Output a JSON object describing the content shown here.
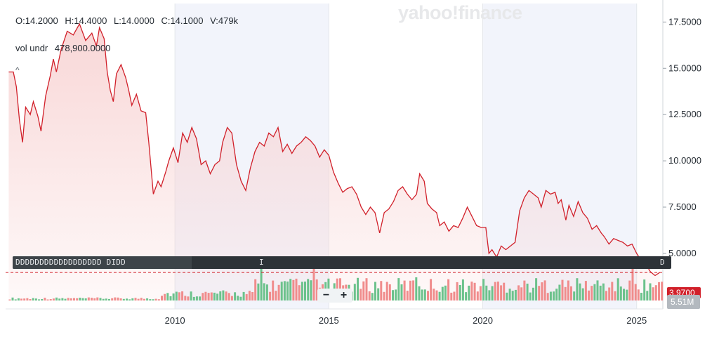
{
  "ohlc": {
    "open": "O:14.2000",
    "high": "H:14.4000",
    "low": "L:14.0000",
    "close": "C:14.1000",
    "volume": "V:479k"
  },
  "volume_under": {
    "label": "vol undr",
    "value": "478,900.0000"
  },
  "collapse_glyph": "^",
  "logo": {
    "text": "yahoo!finance"
  },
  "navigator": {
    "left_labels": "DDDDDDDDDDDDDDDDDD DIDD",
    "mid_label": "I",
    "right_label": "D"
  },
  "zoom": {
    "minus": "−",
    "plus": "+"
  },
  "badges": {
    "last_price": "3.9700",
    "last_volume": "5.51M"
  },
  "colors": {
    "line": "#d1202a",
    "area": "#f8d5d5",
    "up_volume": "#6cc28c",
    "down_volume": "#f08c8c",
    "shade": "#f2f4fb"
  },
  "chart_data": {
    "type": "line",
    "y_axis": {
      "ticks": [
        "17.5000",
        "15.0000",
        "12.5000",
        "10.0000",
        "7.5000",
        "5.0000"
      ],
      "ylim": [
        2.0,
        18.5
      ],
      "position": "right"
    },
    "x_axis": {
      "ticks": [
        "2010",
        "2015",
        "2020",
        "2025"
      ],
      "xlim": [
        2004.5,
        2025.85
      ]
    },
    "last_price": 3.97,
    "series": [
      {
        "points": [
          [
            2004.6,
            14.8
          ],
          [
            2004.75,
            14.8
          ],
          [
            2004.85,
            14.0
          ],
          [
            2004.95,
            12.2
          ],
          [
            2005.05,
            11.0
          ],
          [
            2005.15,
            12.9
          ],
          [
            2005.3,
            12.5
          ],
          [
            2005.4,
            13.2
          ],
          [
            2005.55,
            12.4
          ],
          [
            2005.65,
            11.6
          ],
          [
            2005.8,
            13.5
          ],
          [
            2005.95,
            14.6
          ],
          [
            2006.05,
            15.5
          ],
          [
            2006.15,
            14.8
          ],
          [
            2006.3,
            16.0
          ],
          [
            2006.5,
            17.0
          ],
          [
            2006.7,
            16.8
          ],
          [
            2006.9,
            17.4
          ],
          [
            2007.1,
            16.5
          ],
          [
            2007.3,
            16.9
          ],
          [
            2007.45,
            16.2
          ],
          [
            2007.55,
            17.2
          ],
          [
            2007.7,
            16.6
          ],
          [
            2007.8,
            14.8
          ],
          [
            2007.9,
            13.8
          ],
          [
            2008.0,
            13.2
          ],
          [
            2008.1,
            14.7
          ],
          [
            2008.25,
            15.2
          ],
          [
            2008.4,
            14.5
          ],
          [
            2008.5,
            13.8
          ],
          [
            2008.6,
            13.0
          ],
          [
            2008.75,
            13.6
          ],
          [
            2008.9,
            12.7
          ],
          [
            2009.05,
            12.6
          ],
          [
            2009.15,
            11.0
          ],
          [
            2009.3,
            8.2
          ],
          [
            2009.45,
            8.9
          ],
          [
            2009.55,
            8.6
          ],
          [
            2009.7,
            9.4
          ],
          [
            2009.8,
            10.0
          ],
          [
            2009.95,
            10.7
          ],
          [
            2010.1,
            9.9
          ],
          [
            2010.25,
            11.5
          ],
          [
            2010.4,
            11.0
          ],
          [
            2010.55,
            11.8
          ],
          [
            2010.7,
            11.2
          ],
          [
            2010.85,
            9.8
          ],
          [
            2011.0,
            10.0
          ],
          [
            2011.15,
            9.3
          ],
          [
            2011.3,
            9.8
          ],
          [
            2011.45,
            10.0
          ],
          [
            2011.55,
            11.0
          ],
          [
            2011.7,
            11.8
          ],
          [
            2011.85,
            11.5
          ],
          [
            2012.0,
            9.8
          ],
          [
            2012.15,
            8.9
          ],
          [
            2012.3,
            8.4
          ],
          [
            2012.45,
            9.6
          ],
          [
            2012.6,
            10.5
          ],
          [
            2012.75,
            11.0
          ],
          [
            2012.9,
            10.8
          ],
          [
            2013.05,
            11.5
          ],
          [
            2013.2,
            11.3
          ],
          [
            2013.35,
            11.8
          ],
          [
            2013.5,
            10.5
          ],
          [
            2013.65,
            10.9
          ],
          [
            2013.8,
            10.4
          ],
          [
            2013.95,
            10.8
          ],
          [
            2014.1,
            11.0
          ],
          [
            2014.25,
            11.3
          ],
          [
            2014.4,
            11.1
          ],
          [
            2014.55,
            10.8
          ],
          [
            2014.7,
            10.2
          ],
          [
            2014.85,
            10.6
          ],
          [
            2015.0,
            10.3
          ],
          [
            2015.15,
            9.4
          ],
          [
            2015.3,
            8.8
          ],
          [
            2015.45,
            8.3
          ],
          [
            2015.6,
            8.5
          ],
          [
            2015.75,
            8.6
          ],
          [
            2015.9,
            8.2
          ],
          [
            2016.05,
            7.5
          ],
          [
            2016.2,
            7.1
          ],
          [
            2016.35,
            7.5
          ],
          [
            2016.5,
            7.2
          ],
          [
            2016.65,
            6.1
          ],
          [
            2016.8,
            7.2
          ],
          [
            2016.95,
            7.4
          ],
          [
            2017.1,
            7.8
          ],
          [
            2017.25,
            8.4
          ],
          [
            2017.4,
            8.6
          ],
          [
            2017.55,
            8.2
          ],
          [
            2017.7,
            7.9
          ],
          [
            2017.85,
            8.2
          ],
          [
            2017.95,
            9.3
          ],
          [
            2018.1,
            8.9
          ],
          [
            2018.2,
            7.7
          ],
          [
            2018.35,
            7.4
          ],
          [
            2018.5,
            7.2
          ],
          [
            2018.6,
            6.5
          ],
          [
            2018.75,
            6.7
          ],
          [
            2018.9,
            6.2
          ],
          [
            2019.05,
            6.5
          ],
          [
            2019.2,
            6.4
          ],
          [
            2019.35,
            6.9
          ],
          [
            2019.5,
            7.5
          ],
          [
            2019.65,
            7.0
          ],
          [
            2019.8,
            6.5
          ],
          [
            2019.95,
            6.4
          ],
          [
            2020.1,
            6.4
          ],
          [
            2020.2,
            5.0
          ],
          [
            2020.3,
            5.2
          ],
          [
            2020.45,
            4.8
          ],
          [
            2020.6,
            5.4
          ],
          [
            2020.75,
            5.2
          ],
          [
            2020.9,
            5.4
          ],
          [
            2021.05,
            5.6
          ],
          [
            2021.2,
            7.3
          ],
          [
            2021.35,
            8.0
          ],
          [
            2021.5,
            8.4
          ],
          [
            2021.65,
            8.2
          ],
          [
            2021.8,
            8.0
          ],
          [
            2021.9,
            7.5
          ],
          [
            2022.05,
            8.4
          ],
          [
            2022.2,
            8.2
          ],
          [
            2022.35,
            8.3
          ],
          [
            2022.45,
            7.7
          ],
          [
            2022.55,
            7.9
          ],
          [
            2022.7,
            6.8
          ],
          [
            2022.8,
            7.6
          ],
          [
            2022.95,
            7.0
          ],
          [
            2023.1,
            7.8
          ],
          [
            2023.25,
            7.2
          ],
          [
            2023.4,
            6.9
          ],
          [
            2023.55,
            6.3
          ],
          [
            2023.7,
            6.5
          ],
          [
            2023.85,
            6.1
          ],
          [
            2023.95,
            5.9
          ],
          [
            2024.1,
            5.5
          ],
          [
            2024.25,
            5.8
          ],
          [
            2024.4,
            5.7
          ],
          [
            2024.55,
            5.6
          ],
          [
            2024.7,
            5.4
          ],
          [
            2024.85,
            5.5
          ],
          [
            2025.0,
            5.0
          ],
          [
            2025.15,
            4.6
          ],
          [
            2025.3,
            4.4
          ],
          [
            2025.45,
            4.0
          ],
          [
            2025.6,
            3.8
          ],
          [
            2025.75,
            3.97
          ]
        ]
      }
    ]
  }
}
